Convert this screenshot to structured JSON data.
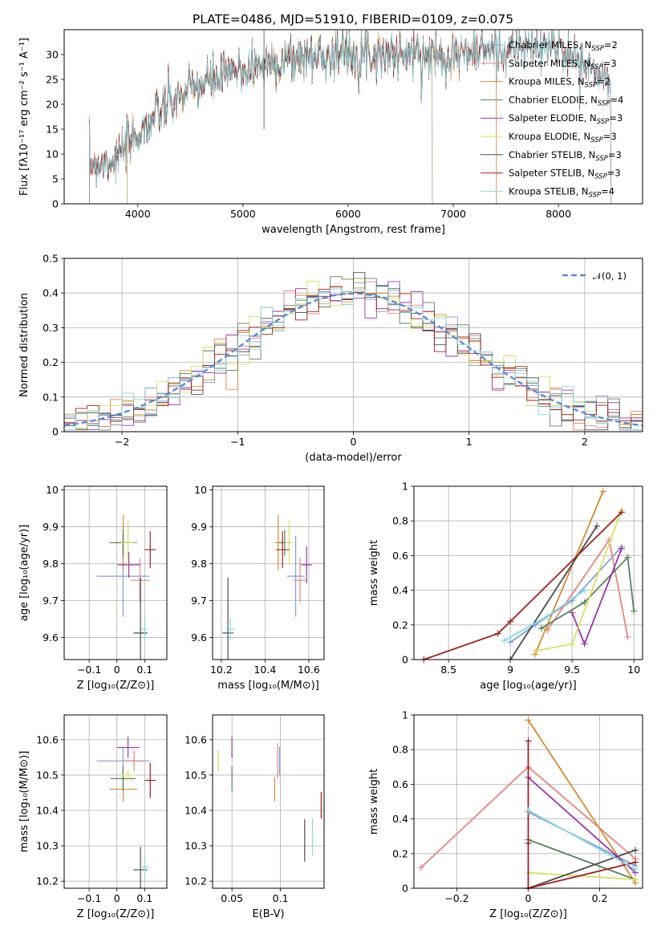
{
  "title": "PLATE=0486, MJD=51910, FIBERID=0109, z=0.075",
  "palette": [
    "#7f9fdf",
    "#e8857d",
    "#d9892f",
    "#55855a",
    "#9a36a8",
    "#d8e05f",
    "#4b4b4b",
    "#a2201f",
    "#86d7e2"
  ],
  "chart_data": [
    {
      "id": "spectrum",
      "type": "line",
      "xlabel": "wavelength [Angstrom, rest frame]",
      "ylabel": "Flux [fλ10⁻¹⁷ erg cm⁻² s⁻¹ A⁻¹]",
      "xlim": [
        3300,
        8800
      ],
      "ylim": [
        0,
        35
      ],
      "xticks": [
        4000,
        5000,
        6000,
        7000,
        8000
      ],
      "yticks": [
        0,
        5,
        10,
        15,
        20,
        25,
        30
      ],
      "grid": false,
      "legend_position": "top-right",
      "series": [
        {
          "name": "Chabrier MILES, N_SSP=2",
          "wave_range": [
            3540,
            7410
          ]
        },
        {
          "name": "Salpeter MILES, N_SSP=3",
          "wave_range": [
            3540,
            7410
          ]
        },
        {
          "name": "Kroupa MILES, N_SSP=2",
          "wave_range": [
            3540,
            7410
          ]
        },
        {
          "name": "Chabrier ELODIE, N_SSP=4",
          "wave_range": [
            3900,
            6800
          ]
        },
        {
          "name": "Salpeter ELODIE, N_SSP=3",
          "wave_range": [
            3900,
            6800
          ]
        },
        {
          "name": "Kroupa ELODIE, N_SSP=3",
          "wave_range": [
            3900,
            6800
          ]
        },
        {
          "name": "Chabrier STELIB, N_SSP=3",
          "wave_range": [
            3540,
            8500
          ]
        },
        {
          "name": "Salpeter STELIB, N_SSP=3",
          "wave_range": [
            3540,
            8500
          ]
        },
        {
          "name": "Kroupa STELIB, N_SSP=4",
          "wave_range": [
            3540,
            8500
          ]
        }
      ],
      "continuum": {
        "wave": [
          3540,
          3800,
          4000,
          4100,
          4300,
          4500,
          4800,
          5000,
          5300,
          5600,
          6000,
          6500,
          7000,
          7400,
          8000,
          8500
        ],
        "flux": [
          8,
          9,
          14,
          16,
          20,
          23,
          25.5,
          27,
          28.5,
          29.5,
          30.5,
          30,
          30,
          31,
          31.5,
          24
        ]
      }
    },
    {
      "id": "residuals",
      "type": "step",
      "xlabel": "(data-model)/error",
      "ylabel": "Normed distribution",
      "xlim": [
        -2.5,
        2.5
      ],
      "ylim": [
        0,
        0.5
      ],
      "xticks": [
        -2,
        -1,
        0,
        1,
        2
      ],
      "yticks": [
        0.0,
        0.1,
        0.2,
        0.3,
        0.4,
        0.5
      ],
      "grid": true,
      "legend_position": "top-right",
      "legend_label": "𝒩(0, 1)",
      "bin_width": 0.1
    },
    {
      "id": "age-vs-Z",
      "type": "errorbar",
      "xlabel": "Z [log₁₀(Z/Z⊙)]",
      "ylabel": "age  [log₁₀(age/yr)]",
      "xlim": [
        -0.19,
        0.18
      ],
      "ylim": [
        9.54,
        10.01
      ],
      "xticks": [
        -0.1,
        0.0,
        0.1
      ],
      "yticks": [
        9.6,
        9.7,
        9.8,
        9.9,
        10.0
      ],
      "points": [
        {
          "x": 0.022,
          "y": 9.766,
          "xerr": 0.19,
          "yerr": 0.22
        },
        {
          "x": 0.083,
          "y": 9.755,
          "xerr": 0.07,
          "yerr": 0.12
        },
        {
          "x": 0.023,
          "y": 9.857,
          "xerr": 0.07,
          "yerr": 0.15
        },
        {
          "x": 0.022,
          "y": 9.857,
          "xerr": 0.1,
          "yerr": 0.07
        },
        {
          "x": 0.043,
          "y": 9.797,
          "xerr": 0.08,
          "yerr": 0.07
        },
        {
          "x": 0.04,
          "y": 9.857,
          "xerr": 0.05,
          "yerr": 0.12
        },
        {
          "x": 0.085,
          "y": 9.612,
          "xerr": 0.05,
          "yerr": 0.3
        },
        {
          "x": 0.12,
          "y": 9.838,
          "xerr": 0.04,
          "yerr": 0.1
        },
        {
          "x": 0.1,
          "y": 9.622,
          "xerr": 0.02,
          "yerr": 0.06
        }
      ]
    },
    {
      "id": "age-vs-mass",
      "type": "errorbar",
      "xlabel": "mass [log₁₀(M/M⊙)]",
      "ylabel": "",
      "xlim": [
        10.16,
        10.67
      ],
      "ylim": [
        9.54,
        10.01
      ],
      "xticks": [
        10.2,
        10.4,
        10.6
      ],
      "yticks": [
        9.6,
        9.7,
        9.8,
        9.9,
        10.0
      ],
      "points": [
        {
          "x": 10.54,
          "y": 9.766,
          "xerr": 0.08,
          "yerr": 0.22
        },
        {
          "x": 10.56,
          "y": 9.755,
          "xerr": 0.06,
          "yerr": 0.12
        },
        {
          "x": 10.46,
          "y": 9.857,
          "xerr": 0.03,
          "yerr": 0.15
        },
        {
          "x": 10.49,
          "y": 9.857,
          "xerr": 0.05,
          "yerr": 0.07
        },
        {
          "x": 10.59,
          "y": 9.797,
          "xerr": 0.05,
          "yerr": 0.1
        },
        {
          "x": 10.51,
          "y": 9.857,
          "xerr": 0.04,
          "yerr": 0.12
        },
        {
          "x": 10.23,
          "y": 9.612,
          "xerr": 0.05,
          "yerr": 0.3
        },
        {
          "x": 10.48,
          "y": 9.838,
          "xerr": 0.06,
          "yerr": 0.1
        },
        {
          "x": 10.24,
          "y": 9.622,
          "xerr": 0.04,
          "yerr": 0.06
        }
      ]
    },
    {
      "id": "mass-weight-vs-age",
      "type": "line",
      "xlabel": "age  [log₁₀(age/yr)]",
      "ylabel": "mass weight",
      "xlim": [
        8.22,
        10.07
      ],
      "ylim": [
        0,
        1
      ],
      "xticks": [
        8.5,
        9.0,
        9.5,
        10.0
      ],
      "yticks": [
        0.0,
        0.2,
        0.4,
        0.6,
        0.8,
        1.0
      ],
      "grid": true,
      "series": [
        {
          "x": [
            9.0,
            9.2,
            9.5,
            9.9
          ],
          "y": [
            0.1,
            0.2,
            0.34,
            0.65
          ]
        },
        {
          "x": [
            9.3,
            9.8,
            9.95
          ],
          "y": [
            0.17,
            0.69,
            0.13
          ]
        },
        {
          "x": [
            9.2,
            9.75
          ],
          "y": [
            0.03,
            0.97
          ]
        },
        {
          "x": [
            9.25,
            9.6,
            9.95,
            10.0
          ],
          "y": [
            0.18,
            0.33,
            0.59,
            0.28
          ]
        },
        {
          "x": [
            9.5,
            9.6,
            9.9
          ],
          "y": [
            0.27,
            0.09,
            0.64
          ]
        },
        {
          "x": [
            9.2,
            9.5,
            9.9
          ],
          "y": [
            0.05,
            0.09,
            0.86
          ]
        },
        {
          "x": [
            9.0,
            9.7
          ],
          "y": [
            0.0,
            0.77
          ]
        },
        {
          "x": [
            8.3,
            8.9,
            9.0,
            9.9
          ],
          "y": [
            0.0,
            0.15,
            0.22,
            0.85
          ]
        },
        {
          "x": [
            8.95,
            9.3,
            9.6
          ],
          "y": [
            0.11,
            0.25,
            0.4
          ]
        }
      ]
    },
    {
      "id": "mass-vs-Z",
      "type": "errorbar",
      "xlabel": "Z [log₁₀(Z/Z⊙)]",
      "ylabel": "mass [log₁₀(M/M⊙)]",
      "xlim": [
        -0.19,
        0.18
      ],
      "ylim": [
        10.18,
        10.67
      ],
      "xticks": [
        -0.1,
        0.0,
        0.1
      ],
      "yticks": [
        10.2,
        10.3,
        10.4,
        10.5,
        10.6
      ],
      "points": [
        {
          "x": 0.022,
          "y": 10.54,
          "xerr": 0.19,
          "yerr": 0.08
        },
        {
          "x": 0.062,
          "y": 10.54,
          "xerr": 0.07,
          "yerr": 0.06
        },
        {
          "x": 0.023,
          "y": 10.46,
          "xerr": 0.1,
          "yerr": 0.07
        },
        {
          "x": 0.022,
          "y": 10.49,
          "xerr": 0.09,
          "yerr": 0.07
        },
        {
          "x": 0.04,
          "y": 10.578,
          "xerr": 0.08,
          "yerr": 0.06
        },
        {
          "x": 0.04,
          "y": 10.5,
          "xerr": 0.05,
          "yerr": 0.03
        },
        {
          "x": 0.085,
          "y": 10.232,
          "xerr": 0.05,
          "yerr": 0.13
        },
        {
          "x": 0.12,
          "y": 10.485,
          "xerr": 0.04,
          "yerr": 0.1
        },
        {
          "x": 0.1,
          "y": 10.24,
          "xerr": 0.03,
          "yerr": 0.06
        }
      ]
    },
    {
      "id": "mass-vs-EBV",
      "type": "errorbar",
      "xlabel": "E(B-V)",
      "ylabel": "",
      "xlim": [
        0.03,
        0.145
      ],
      "ylim": [
        10.18,
        10.67
      ],
      "xticks": [
        0.05,
        0.1
      ],
      "yticks": [
        10.2,
        10.3,
        10.4,
        10.5,
        10.6
      ],
      "points": [
        {
          "x": 0.099,
          "y": 10.54,
          "yerr": 0.08
        },
        {
          "x": 0.097,
          "y": 10.54,
          "yerr": 0.1
        },
        {
          "x": 0.094,
          "y": 10.46,
          "yerr": 0.07
        },
        {
          "x": 0.05,
          "y": 10.49,
          "yerr": 0.07
        },
        {
          "x": 0.05,
          "y": 10.578,
          "yerr": 0.06
        },
        {
          "x": 0.036,
          "y": 10.54,
          "yerr": 0.06
        },
        {
          "x": 0.125,
          "y": 10.315,
          "yerr": 0.12
        },
        {
          "x": 0.142,
          "y": 10.415,
          "yerr": 0.075
        },
        {
          "x": 0.133,
          "y": 10.325,
          "yerr": 0.105
        }
      ]
    },
    {
      "id": "mass-weight-vs-Z",
      "type": "line",
      "xlabel": "Z [log₁₀(Z/Z⊙)]",
      "ylabel": "mass weight",
      "xlim": [
        -0.32,
        0.32
      ],
      "ylim": [
        0,
        1
      ],
      "xticks": [
        -0.2,
        0.0,
        0.2
      ],
      "yticks": [
        0.0,
        0.2,
        0.4,
        0.6,
        0.8,
        1.0
      ],
      "grid": true,
      "series": [
        {
          "x": [
            0.0,
            0.3
          ],
          "y": [
            0.44,
            0.13
          ]
        },
        {
          "x": [
            -0.3,
            0.0,
            0.3
          ],
          "y": [
            0.12,
            0.7,
            0.17
          ]
        },
        {
          "x": [
            0.0,
            0.3
          ],
          "y": [
            0.97,
            0.03
          ]
        },
        {
          "x": [
            0.0,
            0.3
          ],
          "y": [
            0.28,
            0.05
          ]
        },
        {
          "x": [
            0.0,
            0.3
          ],
          "y": [
            0.64,
            0.09
          ]
        },
        {
          "x": [
            0.0,
            0.3
          ],
          "y": [
            0.09,
            0.05
          ]
        },
        {
          "x": [
            0.0,
            0.3
          ],
          "y": [
            0.0,
            0.22
          ]
        },
        {
          "x": [
            0.0,
            0.0,
            0.0,
            0.3
          ],
          "y": [
            0.85,
            0.26,
            0.0,
            0.15
          ]
        },
        {
          "x": [
            0.0,
            0.3
          ],
          "y": [
            0.45,
            0.11
          ]
        }
      ]
    }
  ]
}
